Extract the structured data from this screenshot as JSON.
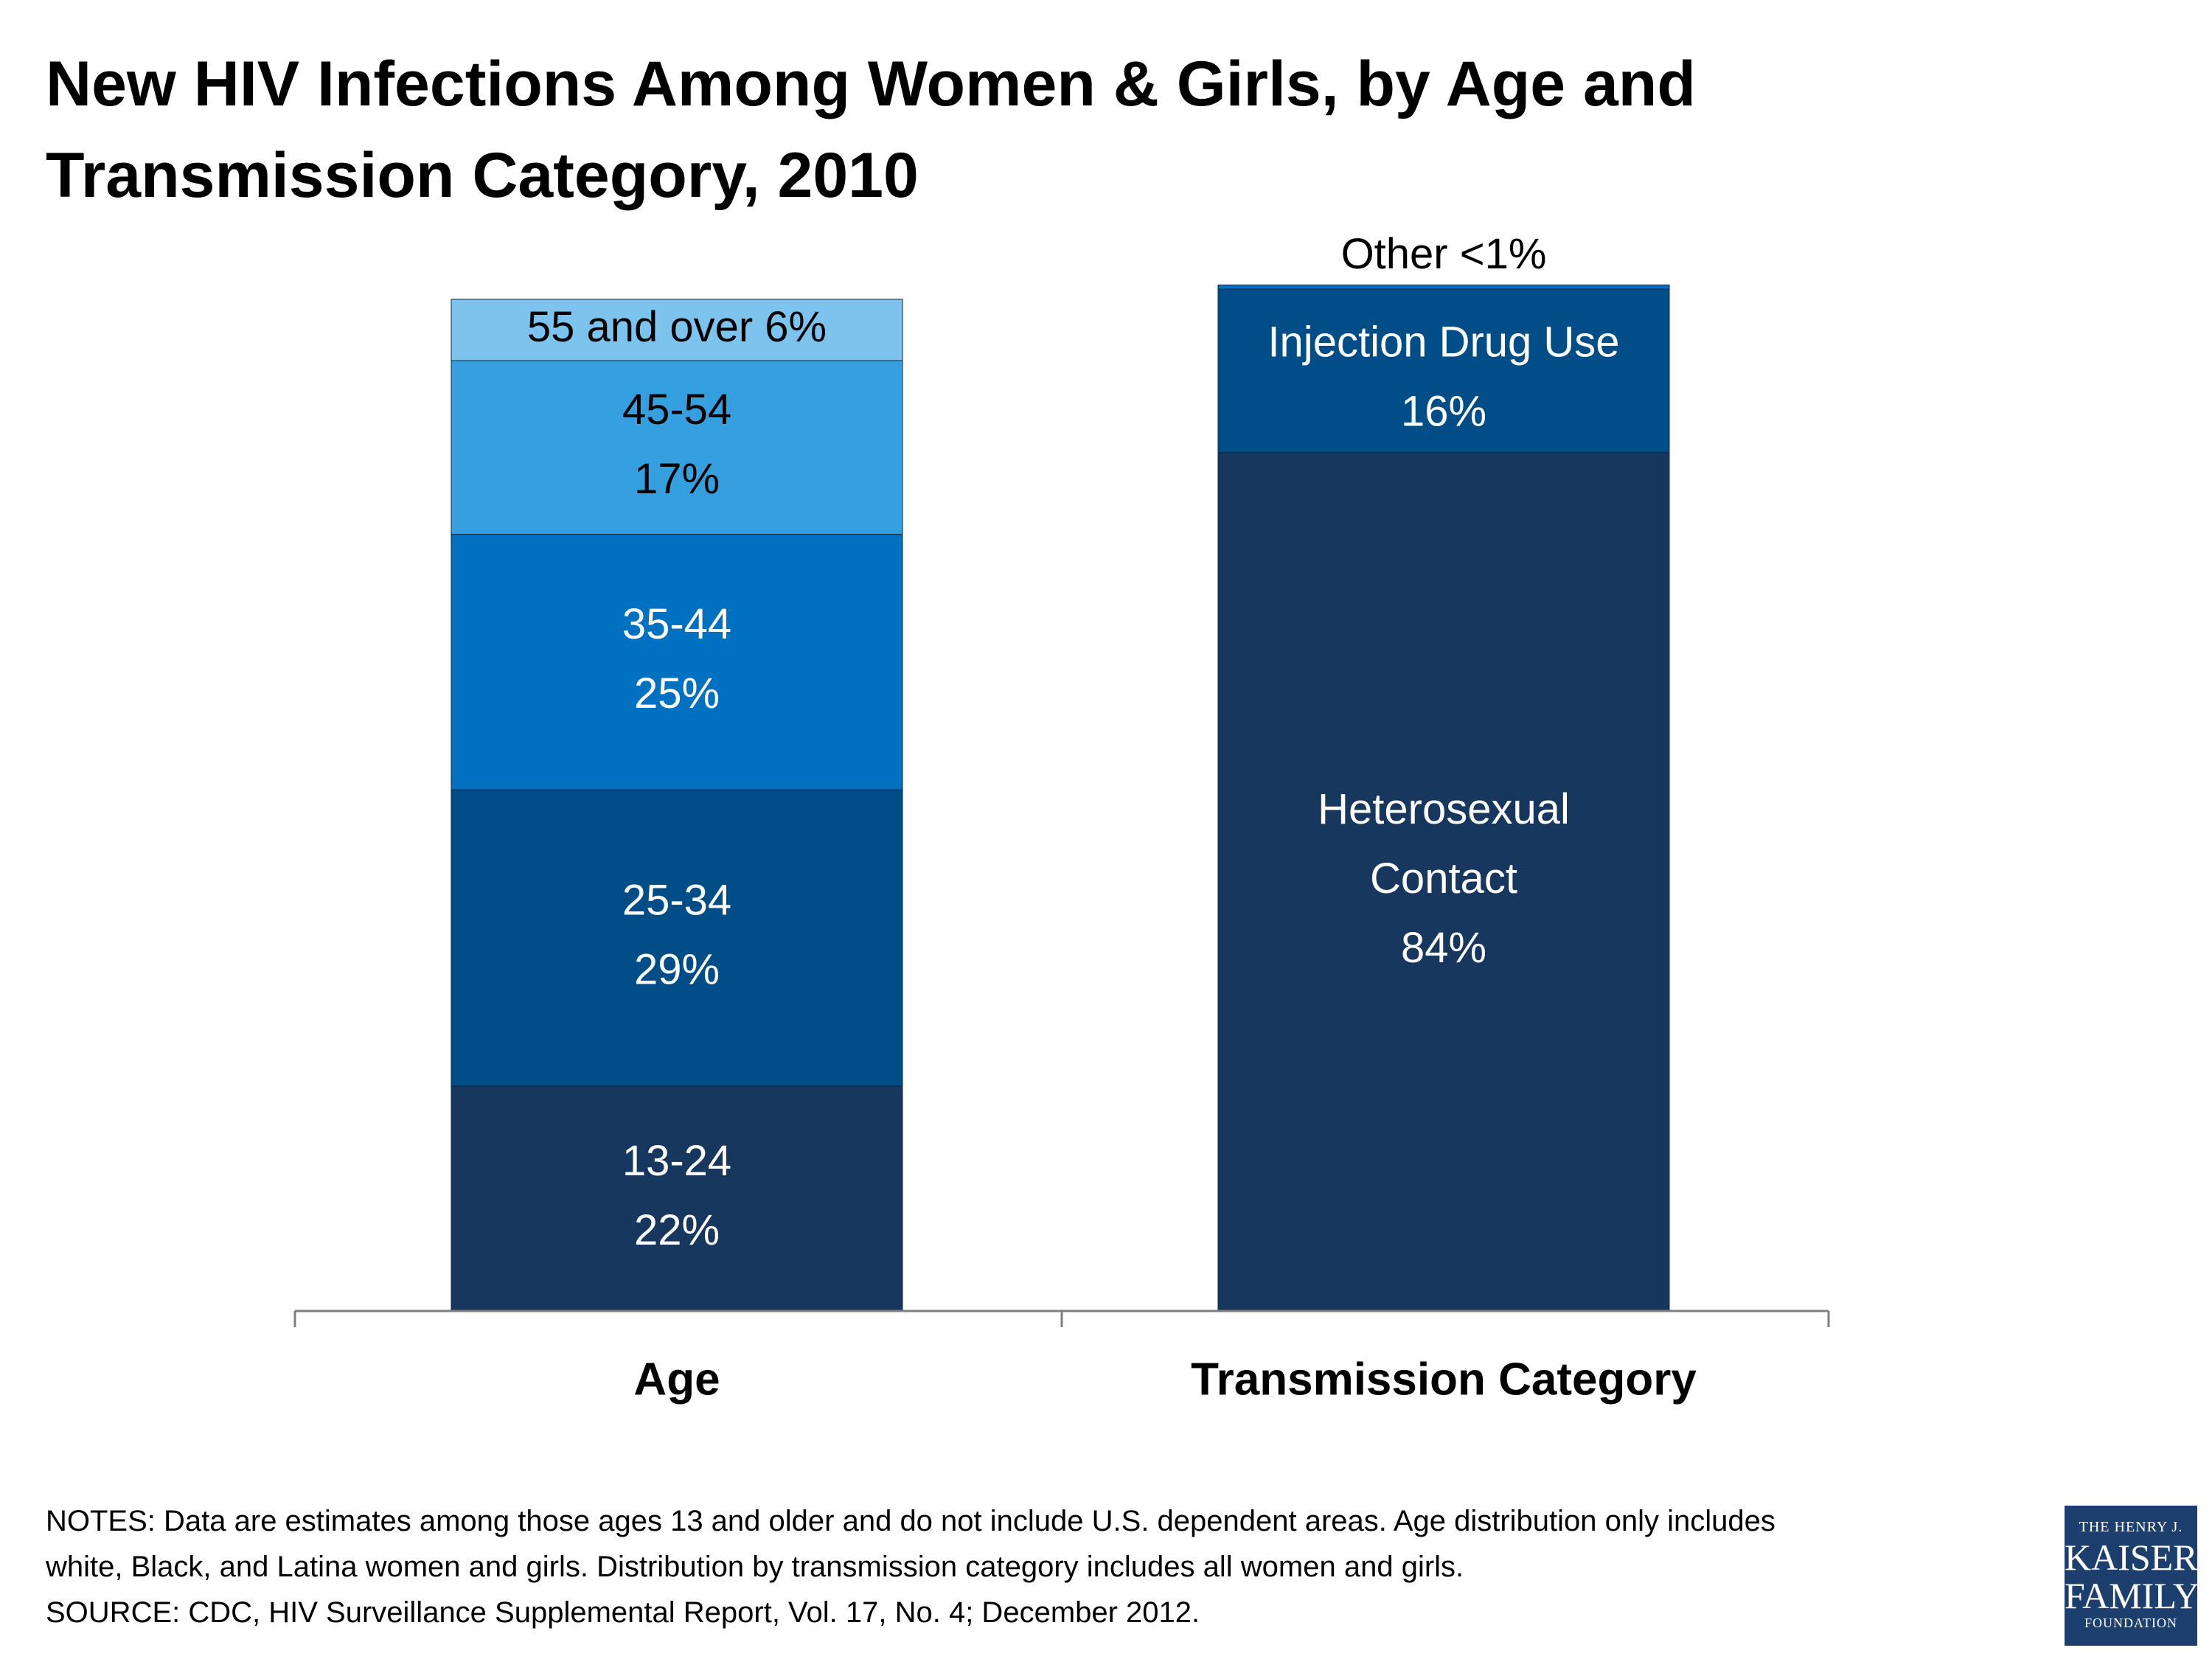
{
  "title": {
    "line1": "New HIV Infections Among Women & Girls, by Age and",
    "line2": "Transmission Category, 2010"
  },
  "chart_data": {
    "type": "bar",
    "stacked": true,
    "categories": [
      "Age",
      "Transmission Category"
    ],
    "stacks": [
      {
        "category": "Age",
        "segments": [
          {
            "label": "13-24",
            "value": 22,
            "value_label": "22%",
            "color": "#17375e",
            "text_color": "#ffffff"
          },
          {
            "label": "25-34",
            "value": 29,
            "value_label": "29%",
            "color": "#004d88",
            "text_color": "#ffffff"
          },
          {
            "label": "35-44",
            "value": 25,
            "value_label": "25%",
            "color": "#0070c0",
            "text_color": "#ffffff"
          },
          {
            "label": "45-54",
            "value": 17,
            "value_label": "17%",
            "color": "#35a0e0",
            "text_color": "#000000"
          },
          {
            "label": "55 and over 6%",
            "value": 6,
            "value_label": "",
            "color": "#7cc4ee",
            "text_color": "#000000"
          }
        ]
      },
      {
        "category": "Transmission Category",
        "segments": [
          {
            "label": "Heterosexual Contact",
            "value": 84,
            "value_label": "84%",
            "color": "#17375e",
            "text_color": "#ffffff"
          },
          {
            "label": "Injection Drug Use",
            "value": 16,
            "value_label": "16%",
            "color": "#004d88",
            "text_color": "#ffffff"
          },
          {
            "label": "Other <1%",
            "value": 0.4,
            "value_label": "",
            "color": "#0070c0",
            "text_color": "#000000"
          }
        ]
      }
    ],
    "ylim": [
      0,
      100
    ],
    "grid": false,
    "legend": "none"
  },
  "notes": {
    "line1": "NOTES: Data are estimates among those ages 13 and older and do not include U.S. dependent areas. Age distribution only includes",
    "line2": "white, Black, and Latina women and girls. Distribution by transmission category includes all women and girls.",
    "line3": "SOURCE: CDC, HIV Surveillance Supplemental Report, Vol. 17, No. 4; December 2012."
  },
  "logo": {
    "line1": "THE HENRY J.",
    "line2": "KAISER",
    "line3": "FAMILY",
    "line4": "FOUNDATION",
    "bg_color": "#1c3f6e"
  }
}
